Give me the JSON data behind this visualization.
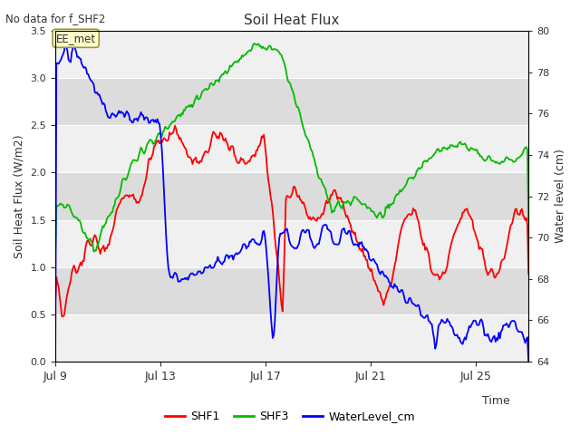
{
  "title": "Soil Heat Flux",
  "subtitle": "No data for f_SHF2",
  "ylabel_left": "Soil Heat Flux (W/m2)",
  "ylabel_right": "Water level (cm)",
  "xlabel": "Time",
  "annotation": "EE_met",
  "ylim_left": [
    0.0,
    3.5
  ],
  "ylim_right": [
    64,
    80
  ],
  "yticks_left": [
    0.0,
    0.5,
    1.0,
    1.5,
    2.0,
    2.5,
    3.0,
    3.5
  ],
  "yticks_right": [
    64,
    66,
    68,
    70,
    72,
    74,
    76,
    78,
    80
  ],
  "xticks_positions": [
    0,
    4,
    8,
    12,
    16
  ],
  "xticks_labels": [
    "Jul 9",
    "Jul 13",
    "Jul 17",
    "Jul 21",
    "Jul 25"
  ],
  "xlim": [
    0,
    18
  ],
  "shf1_color": "#ff0000",
  "shf3_color": "#00bb00",
  "water_color": "#0000ff",
  "bg_light": "#f0f0f0",
  "bg_dark": "#dcdcdc",
  "grid_color": "#ffffff",
  "legend_items": [
    "SHF1",
    "SHF3",
    "WaterLevel_cm"
  ],
  "fig_width": 6.4,
  "fig_height": 4.8,
  "dpi": 100
}
